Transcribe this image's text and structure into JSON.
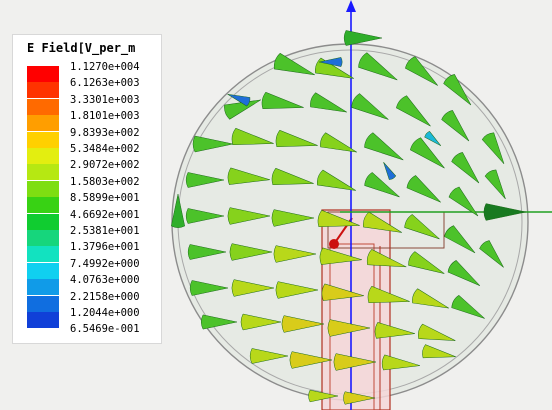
{
  "legend": {
    "title": "E Field[V_per_m",
    "values": [
      "1.1270e+004",
      "6.1263e+003",
      "3.3301e+003",
      "1.8101e+003",
      "9.8393e+002",
      "5.3484e+002",
      "2.9072e+002",
      "1.5803e+002",
      "8.5899e+001",
      "4.6692e+001",
      "2.5381e+001",
      "1.3796e+001",
      "7.4992e+000",
      "4.0763e+000",
      "2.2158e+000",
      "1.2044e+000",
      "6.5469e-001"
    ],
    "colors": [
      "#ff0000",
      "#ff3300",
      "#ff6a00",
      "#ff9e00",
      "#ffd000",
      "#e3ee10",
      "#b6e812",
      "#7ede12",
      "#38d214",
      "#10cc30",
      "#16d67c",
      "#12e2c0",
      "#10d0f0",
      "#109be8",
      "#106ee0",
      "#1040d8",
      "#1010e0"
    ]
  },
  "colors": {
    "background": "#f0f0ee",
    "y_axis": "#1a1aff",
    "x_axis": "#20a020",
    "sphere_outline": "#8c8c8c",
    "structure_fill": "#f5d6d8",
    "structure_outline": "#b03020"
  }
}
